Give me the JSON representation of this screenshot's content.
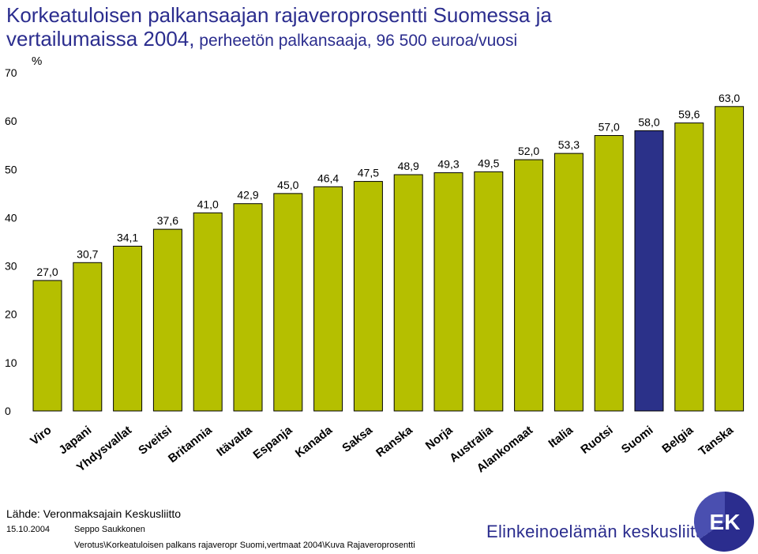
{
  "title": {
    "line1": "Korkeatuloisen palkansaajan rajaveroprosentti Suomessa ja",
    "line2_main": "vertailumaissa 2004,",
    "line2_sub": " perheetön palkansaaja, 96 500 euroa/vuosi"
  },
  "chart_data": {
    "type": "bar",
    "ylabel": "%",
    "ylim": [
      0,
      70
    ],
    "yticks": [
      0,
      10,
      20,
      30,
      40,
      50,
      60,
      70
    ],
    "categories": [
      "Viro",
      "Japani",
      "Yhdysvallat",
      "Sveitsi",
      "Britannia",
      "Itävalta",
      "Espanja",
      "Kanada",
      "Saksa",
      "Ranska",
      "Norja",
      "Australia",
      "Alankomaat",
      "Italia",
      "Ruotsi",
      "Suomi",
      "Belgia",
      "Tanska"
    ],
    "values": [
      27.0,
      30.7,
      34.1,
      37.6,
      41.0,
      42.9,
      45.0,
      46.4,
      47.5,
      48.9,
      49.3,
      49.5,
      52.0,
      53.3,
      57.0,
      58.0,
      59.6,
      63.0
    ],
    "value_labels": [
      "27,0",
      "30,7",
      "34,1",
      "37,6",
      "41,0",
      "42,9",
      "45,0",
      "46,4",
      "47,5",
      "48,9",
      "49,3",
      "49,5",
      "52,0",
      "53,3",
      "57,0",
      "58,0",
      "59,6",
      "63,0"
    ],
    "highlight_category": "Suomi",
    "bar_color": "#b5bf00",
    "highlight_color": "#2b3189",
    "grid": false,
    "legend": "none"
  },
  "footer": {
    "source": "Lähde: Veronmaksajain Keskusliitto",
    "date": "15.10.2004",
    "author": "Seppo Saukkonen",
    "filepath": "Verotus\\Korkeatuloisen palkans rajaveropr Suomi,vertmaat 2004\\Kuva Rajaveroprosentti",
    "org": "Elinkeinoelämän keskusliitto",
    "logo_text": "EK"
  }
}
